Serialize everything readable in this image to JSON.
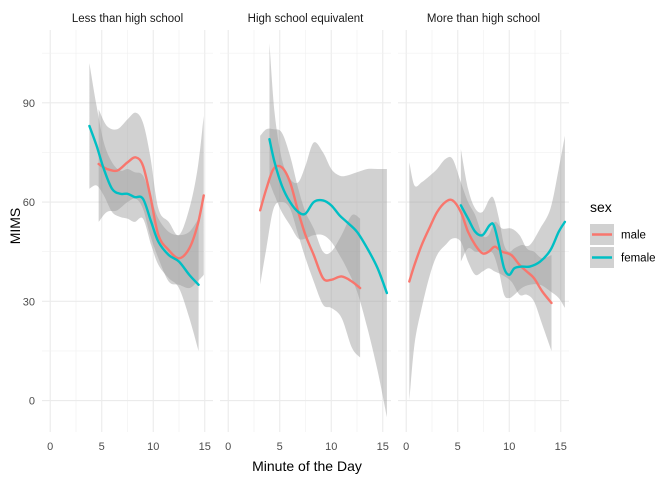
{
  "chart_data": {
    "type": "line",
    "style": "smoothed lines with grey confidence bands, faceted",
    "xlabel": "Minute of the Day",
    "ylabel": "MIMS",
    "xlim": [
      -0.8,
      15.8
    ],
    "ylim": [
      -9.5,
      112
    ],
    "x_ticks": [
      0,
      5,
      10,
      15
    ],
    "y_ticks": [
      0,
      30,
      60,
      90
    ],
    "grid": true,
    "legend": {
      "title": "sex",
      "position": "right",
      "entries": [
        {
          "label": "male",
          "color": "#F8766D"
        },
        {
          "label": "female",
          "color": "#00BFC4"
        }
      ]
    },
    "band_color": "#999999",
    "facets": [
      {
        "title": "Less than high school",
        "series": [
          {
            "name": "male",
            "color": "#F8766D",
            "x": [
              4.7,
              5.5,
              6.5,
              7.5,
              8.3,
              9,
              9.7,
              10.5,
              11.5,
              12.5,
              13.5,
              14.3,
              14.9
            ],
            "y": [
              71.5,
              70,
              69.5,
              72,
              73.5,
              71,
              62,
              50,
              45.5,
              43,
              46,
              53,
              62
            ],
            "lower": [
              54,
              57,
              57.5,
              60,
              61,
              58,
              50,
              43,
              36,
              35,
              34,
              36,
              38
            ],
            "upper": [
              88,
              83,
              82,
              85,
              87,
              84,
              74,
              58,
              54,
              50,
              58,
              70,
              86
            ]
          },
          {
            "name": "female",
            "color": "#00BFC4",
            "x": [
              3.8,
              4.5,
              5.2,
              6,
              6.8,
              7.5,
              8.2,
              9,
              9.8,
              10.5,
              11.5,
              12.5,
              13.5,
              14.4
            ],
            "y": [
              83,
              77,
              70,
              64,
              62.5,
              62.5,
              61.5,
              61,
              54,
              48,
              44,
              42,
              38,
              35
            ],
            "lower": [
              64,
              65,
              62,
              57,
              55.5,
              55,
              54,
              55,
              47,
              41,
              37,
              34,
              25,
              15
            ],
            "upper": [
              102,
              89,
              78,
              72,
              69.5,
              70,
              69,
              68,
              61,
              55,
              51,
              50,
              51,
              55
            ]
          }
        ]
      },
      {
        "title": "High school equivalent",
        "series": [
          {
            "name": "male",
            "color": "#F8766D",
            "x": [
              3.1,
              3.7,
              4.4,
              5.2,
              6,
              6.8,
              7.5,
              8.3,
              9.2,
              10,
              11,
              12,
              12.8
            ],
            "y": [
              57.5,
              64,
              70,
              70.5,
              66,
              57,
              50,
              44,
              37,
              36.5,
              37.5,
              36,
              34
            ],
            "lower": [
              35,
              46,
              58,
              60,
              58,
              50,
              43,
              36,
              29,
              28,
              25,
              16,
              13
            ],
            "upper": [
              80,
              82,
              82,
              81,
              74,
              64,
              57,
              52,
              45,
              45,
              50,
              56,
              55
            ]
          },
          {
            "name": "female",
            "color": "#00BFC4",
            "x": [
              4,
              4.5,
              5.2,
              6,
              6.8,
              7.5,
              8.3,
              9.2,
              10,
              10.8,
              11.5,
              12.5,
              13.5,
              14.5,
              15.4
            ],
            "y": [
              79,
              72,
              65,
              60,
              57,
              56.5,
              60,
              60.5,
              59,
              56,
              54,
              51,
              46,
              40,
              32.5
            ],
            "lower": [
              66,
              62,
              57,
              53,
              49,
              49,
              50,
              50,
              48,
              44,
              40,
              33,
              22,
              9,
              -5
            ],
            "upper": [
              108,
              87,
              73,
              67,
              66,
              71,
              78,
              75,
              70,
              68,
              68,
              69,
              70,
              70,
              70
            ]
          }
        ]
      },
      {
        "title": "More than high school",
        "series": [
          {
            "name": "male",
            "color": "#F8766D",
            "x": [
              0.3,
              0.8,
              1.5,
              2.3,
              3,
              3.8,
              4.5,
              5.3,
              6,
              6.7,
              7.4,
              8,
              8.6,
              9.3,
              10.2,
              11,
              11.7,
              12.4,
              13.2,
              14.1
            ],
            "y": [
              36,
              41,
              47,
              52.5,
              57,
              60,
              60.5,
              57,
              51,
              47,
              44.5,
              45,
              46.5,
              45,
              44,
              41,
              39,
              37,
              33,
              29.5
            ],
            "lower": [
              0,
              17,
              28,
              38,
              44,
              47,
              49,
              48,
              42,
              38,
              39,
              40,
              39,
              38,
              36,
              32,
              32,
              30,
              23,
              15
            ],
            "upper": [
              72,
              65,
              66,
              68,
              70,
              73,
              73,
              66,
              60,
              56,
              50,
              50,
              54,
              52,
              52,
              50,
              46,
              45,
              43,
              44
            ]
          },
          {
            "name": "female",
            "color": "#00BFC4",
            "x": [
              5.3,
              6,
              6.7,
              7.4,
              8.1,
              8.5,
              9,
              9.5,
              10,
              10.5,
              11.2,
              12,
              13,
              14,
              14.8,
              15.4
            ],
            "y": [
              59,
              55,
              51,
              50,
              53,
              53,
              47,
              40,
              38,
              40,
              40.5,
              40.5,
              42,
              45.5,
              51,
              54
            ],
            "lower": [
              42,
              46,
              45,
              45,
              45,
              44,
              39,
              32,
              31,
              32,
              34,
              35,
              35,
              33,
              31,
              28
            ],
            "upper": [
              76,
              64,
              58,
              57,
              61,
              61,
              55,
              47,
              45,
              46,
              47,
              47,
              52,
              58,
              70,
              80
            ]
          }
        ]
      }
    ]
  }
}
